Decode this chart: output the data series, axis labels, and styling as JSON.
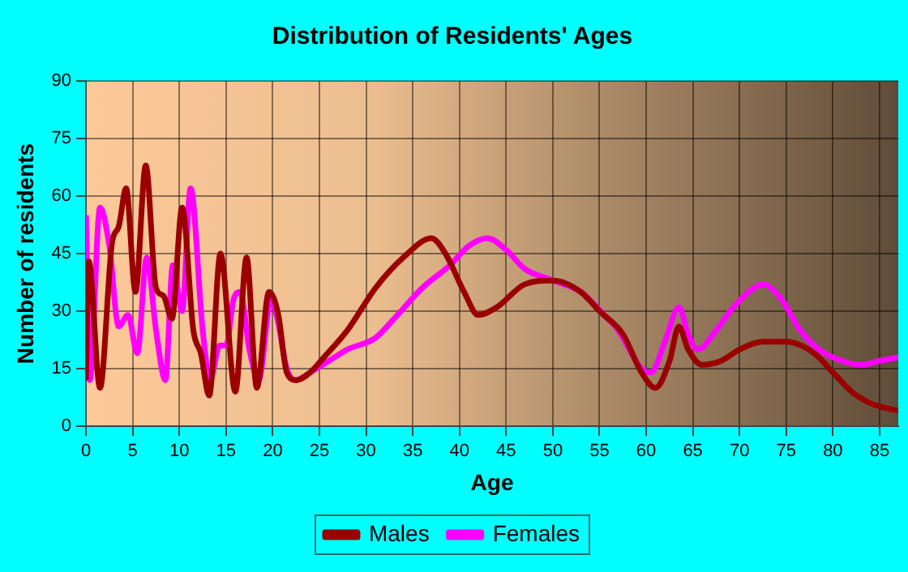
{
  "chart_data": {
    "type": "line",
    "title": "Distribution of Residents' Ages",
    "xlabel": "Age",
    "ylabel": "Number of residents",
    "xlim": [
      0,
      87
    ],
    "xticks": [
      0,
      5,
      10,
      15,
      20,
      25,
      30,
      35,
      40,
      45,
      50,
      55,
      60,
      65,
      70,
      75,
      80,
      85
    ],
    "ylim": [
      0,
      90
    ],
    "yticks": [
      0,
      15,
      30,
      45,
      60,
      75,
      90
    ],
    "grid": true,
    "legend": "bottom",
    "marker": "none",
    "line_style": "solid",
    "series": [
      {
        "name": "Males",
        "color": "#9b0000",
        "x": [
          0,
          0.3,
          1.5,
          2.8,
          3.5,
          4.3,
          5.3,
          6.4,
          7.5,
          8.3,
          9.2,
          10.3,
          11.5,
          12.3,
          13.2,
          14.4,
          16,
          17.2,
          18.3,
          19.6,
          20.6,
          21.5,
          22.5,
          24,
          25.5,
          28,
          31,
          34,
          37,
          38.5,
          40.5,
          42,
          44,
          47,
          50,
          53,
          55,
          57.5,
          59.5,
          61,
          62.5,
          63.5,
          64.5,
          66,
          68,
          70,
          72.5,
          75,
          78,
          80,
          82,
          84,
          87
        ],
        "values": [
          12,
          43,
          10,
          48,
          52,
          62,
          35,
          68,
          36,
          34,
          28,
          57,
          25,
          19,
          8,
          45,
          9,
          44,
          10,
          35,
          29,
          14,
          12,
          14,
          18,
          25,
          36,
          44,
          49,
          45,
          35,
          29,
          31,
          37,
          38,
          35,
          30,
          24,
          14,
          10,
          17,
          26,
          20,
          16,
          17,
          20,
          22,
          22,
          19,
          14,
          9,
          6,
          4
        ]
      },
      {
        "name": "Females",
        "color": "#ff00ff",
        "x": [
          0,
          0.4,
          1.5,
          2.5,
          3.5,
          4.5,
          5.5,
          6.5,
          7.5,
          8.5,
          9.3,
          10.3,
          11.2,
          12.5,
          13.3,
          14.3,
          15,
          15.8,
          16.5,
          17.5,
          18.5,
          19.8,
          20.5,
          21.5,
          22.5,
          24,
          26,
          28,
          31,
          33,
          36,
          39,
          41,
          43,
          45,
          47,
          50,
          53,
          55.5,
          57,
          59.5,
          60.5,
          62,
          63.5,
          64.5,
          65.5,
          67.5,
          69,
          71,
          72.5,
          74.5,
          76.5,
          78.5,
          81,
          83,
          85,
          87
        ],
        "values": [
          55,
          12,
          57,
          47,
          26,
          29,
          19,
          44,
          25,
          12,
          42,
          30,
          62,
          25,
          12,
          21,
          21,
          33,
          35,
          20,
          12,
          33,
          28,
          15,
          12,
          14,
          17,
          20,
          23,
          28,
          36,
          42,
          47,
          49,
          46,
          41,
          38,
          35,
          29,
          25,
          15,
          14,
          22,
          31,
          24,
          20,
          25,
          30,
          35,
          37,
          33,
          25,
          20,
          17,
          16,
          17,
          18
        ]
      }
    ]
  }
}
